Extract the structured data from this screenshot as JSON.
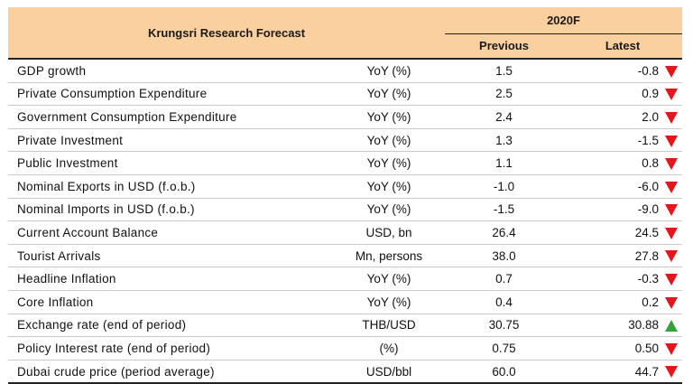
{
  "header": {
    "title": "Krungsri Research Forecast",
    "year": "2020F",
    "previous_label": "Previous",
    "latest_label": "Latest"
  },
  "colors": {
    "header_bg": "#fbd09f",
    "down": "#e8141a",
    "up": "#35a13a"
  },
  "rows": [
    {
      "name": "GDP growth",
      "unit": "YoY (%)",
      "previous": "1.5",
      "latest": "-0.8",
      "trend": "down-arrow-icon"
    },
    {
      "name": "Private Consumption Expenditure",
      "unit": "YoY (%)",
      "previous": "2.5",
      "latest": "0.9",
      "trend": "down-arrow-icon"
    },
    {
      "name": "Government Consumption Expenditure",
      "unit": "YoY (%)",
      "previous": "2.4",
      "latest": "2.0",
      "trend": "down-arrow-icon"
    },
    {
      "name": "Private Investment",
      "unit": "YoY (%)",
      "previous": "1.3",
      "latest": "-1.5",
      "trend": "down-arrow-icon"
    },
    {
      "name": "Public Investment",
      "unit": "YoY (%)",
      "previous": "1.1",
      "latest": "0.8",
      "trend": "down-arrow-icon"
    },
    {
      "name": "Nominal Exports in USD (f.o.b.)",
      "unit": "YoY (%)",
      "previous": "-1.0",
      "latest": "-6.0",
      "trend": "down-arrow-icon"
    },
    {
      "name": "Nominal Imports in USD (f.o.b.)",
      "unit": "YoY (%)",
      "previous": "-1.5",
      "latest": "-9.0",
      "trend": "down-arrow-icon"
    },
    {
      "name": "Current Account Balance",
      "unit": "USD, bn",
      "previous": "26.4",
      "latest": "24.5",
      "trend": "down-arrow-icon"
    },
    {
      "name": "Tourist Arrivals",
      "unit": "Mn, persons",
      "previous": "38.0",
      "latest": "27.8",
      "trend": "down-arrow-icon"
    },
    {
      "name": "Headline Inflation",
      "unit": "YoY (%)",
      "previous": "0.7",
      "latest": "-0.3",
      "trend": "down-arrow-icon"
    },
    {
      "name": "Core Inflation",
      "unit": "YoY (%)",
      "previous": "0.4",
      "latest": "0.2",
      "trend": "down-arrow-icon"
    },
    {
      "name": "Exchange rate (end of period)",
      "unit": "THB/USD",
      "previous": "30.75",
      "latest": "30.88",
      "trend": "up-arrow-icon"
    },
    {
      "name": "Policy Interest rate (end of period)",
      "unit": "(%)",
      "previous": "0.75",
      "latest": "0.50",
      "trend": "down-arrow-icon"
    },
    {
      "name": "Dubai crude price (period average)",
      "unit": "USD/bbl",
      "previous": "60.0",
      "latest": "44.7",
      "trend": "down-arrow-icon"
    }
  ]
}
